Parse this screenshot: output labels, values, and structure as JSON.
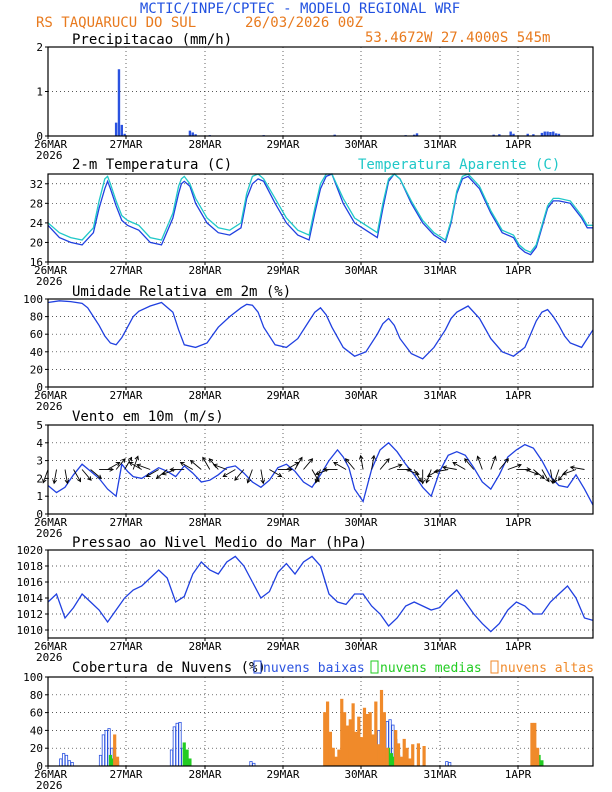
{
  "header": {
    "title": "MCTIC/INPE/CPTEC - MODELO REGIONAL WRF",
    "location": "RS TAQUARUCU DO SUL",
    "run": "26/03/2026 00Z",
    "coords": "53.4672W 27.4000S 545m"
  },
  "colors": {
    "title": "#2050e0",
    "orange": "#e87a1e",
    "line": "#2040e0",
    "apparent": "#20c8c8",
    "arrow": "#000000",
    "low": "#2a52e0",
    "mid": "#22cc22",
    "high": "#f08a2a",
    "grid": "#222222"
  },
  "xaxis": {
    "labels": [
      "26MAR",
      "27MAR",
      "28MAR",
      "29MAR",
      "30MAR",
      "31MAR",
      "1APR"
    ],
    "year": "2026"
  },
  "chart_data": [
    {
      "id": "precip",
      "type": "bar",
      "title": "Precipitacao (mm/h)",
      "ylim": [
        0,
        2
      ],
      "yticks": [
        "0",
        "1",
        "2"
      ],
      "x_hours": [
        24,
        25,
        26,
        27,
        50,
        51,
        52,
        57,
        76,
        101,
        126,
        129,
        130,
        157,
        159,
        163,
        164,
        169,
        171,
        174,
        175,
        176,
        177,
        178,
        179,
        180
      ],
      "values": [
        0.3,
        1.5,
        0.25,
        0.05,
        0.12,
        0.08,
        0.04,
        0.02,
        0.02,
        0.03,
        0.02,
        0.03,
        0.06,
        0.03,
        0.04,
        0.1,
        0.05,
        0.05,
        0.04,
        0.07,
        0.1,
        0.1,
        0.09,
        0.1,
        0.06,
        0.05
      ]
    },
    {
      "id": "temp",
      "type": "line",
      "title": "2-m Temperatura (C)",
      "legend": "Temperatura Aparente (C)",
      "ylim": [
        16,
        34
      ],
      "yticks": [
        "16",
        "20",
        "24",
        "28",
        "32"
      ],
      "series": [
        {
          "name": "Temperatura",
          "x": [
            0,
            4,
            8,
            12,
            16,
            18,
            20,
            21,
            22,
            24,
            26,
            28,
            30,
            32,
            36,
            40,
            44,
            46,
            47,
            48,
            50,
            52,
            56,
            60,
            64,
            68,
            70,
            72,
            74,
            76,
            80,
            84,
            88,
            92,
            94,
            96,
            98,
            100,
            104,
            108,
            112,
            116,
            118,
            120,
            122,
            124,
            128,
            132,
            136,
            140,
            142,
            144,
            146,
            148,
            152,
            156,
            160,
            164,
            166,
            168,
            170,
            172,
            176,
            178,
            180,
            184,
            188,
            190,
            192
          ],
          "values": [
            23.5,
            21,
            20,
            19.5,
            22,
            27,
            31,
            32.5,
            31,
            27.5,
            24.5,
            23.5,
            23,
            22.5,
            20,
            19.5,
            25,
            30,
            32,
            32.5,
            31.5,
            28,
            24,
            22,
            21.5,
            23,
            29,
            32,
            33,
            32.5,
            28,
            24,
            21.5,
            20.5,
            26,
            31,
            33.5,
            34,
            28,
            24,
            22.5,
            21,
            27,
            32.5,
            34,
            33,
            28,
            24,
            21.5,
            20,
            24,
            30,
            33,
            33.5,
            31,
            26,
            22,
            21,
            19,
            18,
            17.5,
            19,
            27,
            28.5,
            28.5,
            28,
            25,
            23,
            23
          ]
        },
        {
          "name": "Temperatura Aparente",
          "x": [
            0,
            4,
            8,
            12,
            16,
            18,
            20,
            21,
            22,
            24,
            26,
            28,
            30,
            32,
            36,
            40,
            44,
            46,
            47,
            48,
            50,
            52,
            56,
            60,
            64,
            68,
            70,
            72,
            74,
            76,
            80,
            84,
            88,
            92,
            94,
            96,
            98,
            100,
            104,
            108,
            112,
            116,
            118,
            120,
            122,
            124,
            128,
            132,
            136,
            140,
            142,
            144,
            146,
            148,
            152,
            156,
            160,
            164,
            166,
            168,
            170,
            172,
            176,
            178,
            180,
            184,
            188,
            190,
            192
          ],
          "values": [
            24,
            22,
            21,
            20.5,
            23,
            28.5,
            33,
            33.5,
            32,
            28.5,
            25.5,
            24.5,
            24,
            23.5,
            21,
            20.5,
            26,
            31.5,
            33,
            33.5,
            32,
            29,
            25,
            23,
            22.5,
            24,
            30,
            33.5,
            34,
            33,
            29,
            25,
            22.5,
            21.5,
            27,
            32,
            34,
            34,
            29,
            25,
            23.5,
            22,
            28,
            33,
            34,
            33,
            28.5,
            24.5,
            22,
            20.5,
            24.5,
            30.5,
            33.5,
            34,
            31.5,
            26.5,
            22.5,
            21.5,
            19.5,
            18.5,
            18,
            19.5,
            27.5,
            29,
            29,
            28.5,
            25.5,
            23.5,
            23.5
          ]
        }
      ]
    },
    {
      "id": "rh",
      "type": "line",
      "title": "Umidade Relativa em 2m (%)",
      "ylim": [
        0,
        100
      ],
      "yticks": [
        "0",
        "20",
        "40",
        "60",
        "80",
        "100"
      ],
      "series": [
        {
          "name": "Umidade Relativa",
          "x": [
            0,
            4,
            8,
            12,
            14,
            16,
            18,
            20,
            22,
            24,
            26,
            28,
            30,
            32,
            36,
            40,
            44,
            46,
            48,
            52,
            56,
            60,
            64,
            68,
            70,
            72,
            74,
            76,
            80,
            84,
            88,
            92,
            94,
            96,
            98,
            100,
            104,
            108,
            112,
            116,
            118,
            120,
            122,
            124,
            128,
            132,
            136,
            140,
            142,
            144,
            148,
            152,
            156,
            160,
            164,
            168,
            170,
            172,
            174,
            176,
            178,
            180,
            182,
            184,
            188,
            192
          ],
          "values": [
            96,
            98,
            97,
            95,
            90,
            80,
            70,
            58,
            50,
            48,
            56,
            68,
            80,
            86,
            92,
            96,
            85,
            65,
            48,
            45,
            50,
            68,
            80,
            90,
            94,
            93,
            85,
            68,
            48,
            45,
            55,
            75,
            85,
            90,
            82,
            68,
            45,
            35,
            40,
            60,
            72,
            78,
            70,
            55,
            38,
            32,
            45,
            65,
            78,
            85,
            92,
            78,
            55,
            40,
            35,
            45,
            60,
            75,
            85,
            88,
            80,
            70,
            58,
            50,
            45,
            65
          ]
        }
      ]
    },
    {
      "id": "wind",
      "type": "line",
      "title": "Vento em 10m (m/s)",
      "ylim": [
        0,
        5
      ],
      "yticks": [
        "0",
        "1",
        "2",
        "3",
        "4",
        "5"
      ],
      "series": [
        {
          "name": "Velocidade",
          "x": [
            0,
            3,
            6,
            9,
            12,
            15,
            18,
            21,
            24,
            26,
            28,
            30,
            33,
            36,
            39,
            42,
            45,
            48,
            51,
            54,
            57,
            60,
            63,
            66,
            69,
            72,
            75,
            78,
            81,
            84,
            87,
            90,
            93,
            96,
            99,
            102,
            104,
            106,
            108,
            111,
            114,
            117,
            120,
            123,
            126,
            129,
            132,
            135,
            138,
            141,
            144,
            147,
            150,
            153,
            156,
            159,
            162,
            165,
            168,
            171,
            174,
            177,
            180,
            183,
            186,
            189,
            192
          ],
          "values": [
            1.6,
            1.2,
            1.5,
            2.2,
            2.8,
            2.4,
            2.0,
            1.4,
            1.0,
            2.8,
            2.4,
            2.1,
            2.0,
            2.3,
            2.6,
            2.4,
            2.1,
            2.7,
            2.3,
            1.8,
            1.9,
            2.2,
            2.6,
            2.7,
            2.3,
            1.8,
            1.5,
            1.9,
            2.6,
            2.8,
            2.4,
            1.8,
            1.5,
            2.2,
            3.0,
            3.6,
            3.2,
            2.6,
            1.4,
            0.7,
            2.5,
            3.6,
            4.0,
            3.5,
            2.8,
            2.2,
            1.5,
            1.0,
            2.4,
            3.3,
            3.5,
            3.3,
            2.6,
            1.8,
            1.4,
            2.2,
            3.2,
            3.6,
            3.9,
            3.7,
            3.0,
            2.1,
            1.6,
            1.5,
            2.2,
            1.4,
            0.5
          ]
        }
      ],
      "arrows_x": [
        0,
        3,
        6,
        9,
        12,
        15,
        18,
        21,
        24,
        27,
        30,
        33,
        36,
        39,
        42,
        45,
        48,
        51,
        54,
        57,
        60,
        63,
        66,
        69,
        72,
        75,
        78,
        81,
        84,
        87,
        90,
        93,
        96,
        99,
        102,
        105,
        108,
        111,
        114,
        117,
        120,
        123,
        126,
        129,
        132,
        135,
        138,
        141,
        144,
        147,
        150,
        153,
        156,
        159,
        162,
        165,
        168,
        171,
        174,
        177,
        180,
        183,
        186,
        189
      ],
      "arrows_dir_deg": [
        200,
        190,
        170,
        150,
        140,
        130,
        90,
        60,
        40,
        30,
        20,
        300,
        290,
        240,
        230,
        250,
        270,
        300,
        310,
        330,
        320,
        290,
        240,
        220,
        200,
        170,
        120,
        90,
        60,
        30,
        40,
        150,
        200,
        250,
        270,
        300,
        320,
        350,
        10,
        40,
        70,
        90,
        110,
        150,
        180,
        200,
        240,
        260,
        280,
        300,
        320,
        340,
        20,
        40,
        70,
        90,
        110,
        130,
        150,
        170,
        200,
        220,
        250,
        280
      ]
    },
    {
      "id": "pressure",
      "type": "line",
      "title": "Pressao ao Nivel Medio do Mar (hPa)",
      "ylim": [
        1009,
        1020
      ],
      "yticks": [
        "1010",
        "1012",
        "1014",
        "1016",
        "1018",
        "1020"
      ],
      "series": [
        {
          "name": "Pressao",
          "x": [
            0,
            3,
            6,
            9,
            12,
            15,
            18,
            21,
            24,
            27,
            30,
            33,
            36,
            39,
            42,
            45,
            48,
            51,
            54,
            57,
            60,
            63,
            66,
            69,
            72,
            75,
            78,
            81,
            84,
            87,
            90,
            93,
            96,
            99,
            102,
            105,
            108,
            111,
            114,
            117,
            120,
            123,
            126,
            129,
            132,
            135,
            138,
            141,
            144,
            147,
            150,
            153,
            156,
            159,
            162,
            165,
            168,
            171,
            174,
            177,
            180,
            183,
            186,
            189,
            192
          ],
          "values": [
            1013.5,
            1014.5,
            1011.5,
            1012.8,
            1014.5,
            1013.5,
            1012.5,
            1011,
            1012.5,
            1014,
            1015,
            1015.5,
            1016.5,
            1017.5,
            1016.5,
            1013.5,
            1014.2,
            1017,
            1018.5,
            1017.5,
            1017,
            1018.5,
            1019.2,
            1018,
            1016,
            1014,
            1014.8,
            1017.2,
            1018.3,
            1017,
            1018.5,
            1019.2,
            1018,
            1014.5,
            1013.5,
            1013.2,
            1014.5,
            1014.5,
            1013,
            1012,
            1010.5,
            1011.5,
            1013,
            1013.5,
            1013,
            1012.5,
            1012.8,
            1014,
            1015,
            1013.5,
            1012,
            1010.8,
            1009.8,
            1010.8,
            1012.5,
            1013.5,
            1013,
            1012,
            1012,
            1013.5,
            1014.5,
            1015.5,
            1014,
            1011.5,
            1011.2
          ]
        }
      ]
    },
    {
      "id": "clouds",
      "type": "bar",
      "title": "Cobertura de Nuvens (%)",
      "legend": [
        "nuvens baixas",
        "nuvens medias",
        "nuvens altas"
      ],
      "ylim": [
        0,
        100
      ],
      "yticks": [
        "0",
        "20",
        "40",
        "60",
        "80",
        "100"
      ],
      "low": {
        "x": [
          5,
          6,
          7,
          8,
          9,
          19,
          20,
          21,
          22,
          23,
          24,
          25,
          44,
          45,
          46,
          47,
          48,
          49,
          72,
          73,
          100,
          101,
          116,
          117,
          118,
          120,
          121,
          122,
          123,
          124,
          141,
          142
        ],
        "values": [
          8,
          14,
          12,
          6,
          4,
          12,
          35,
          40,
          42,
          20,
          10,
          5,
          18,
          44,
          48,
          49,
          20,
          8,
          5,
          3,
          6,
          4,
          28,
          40,
          32,
          50,
          52,
          46,
          30,
          12,
          5,
          4
        ]
      },
      "mid": {
        "x": [
          22,
          23,
          24,
          48,
          49,
          50,
          120,
          121,
          122,
          124,
          125,
          172,
          173,
          174
        ],
        "values": [
          12,
          8,
          6,
          26,
          18,
          8,
          20,
          14,
          10,
          6,
          4,
          8,
          12,
          6
        ]
      },
      "high": {
        "x": [
          23,
          24,
          97,
          98,
          99,
          100,
          101,
          102,
          103,
          104,
          105,
          106,
          107,
          108,
          109,
          110,
          111,
          112,
          113,
          114,
          115,
          116,
          117,
          118,
          119,
          122,
          123,
          124,
          125,
          126,
          127,
          128,
          130,
          132,
          170,
          171,
          172
        ],
        "values": [
          35,
          10,
          60,
          72,
          38,
          20,
          10,
          18,
          75,
          60,
          45,
          52,
          70,
          38,
          55,
          32,
          65,
          58,
          60,
          35,
          72,
          24,
          85,
          60,
          20,
          40,
          25,
          10,
          30,
          20,
          8,
          24,
          25,
          22,
          48,
          48,
          20
        ]
      }
    }
  ]
}
